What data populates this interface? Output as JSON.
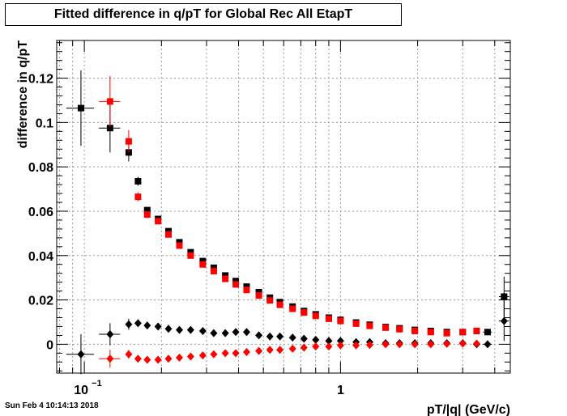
{
  "title": "Fitted difference in q/pT for Global Rec All EtapT",
  "timestamp": "Sun Feb  4 10:14:13 2018",
  "colors": {
    "black": "#000000",
    "red": "#ff0000",
    "grid": "#9a9a9a",
    "frame": "#000000"
  },
  "chart_data": {
    "type": "scatter",
    "title": "Fitted difference in q/pT for Global Rec All EtapT",
    "xlabel": "pT/|q| (GeV/c)",
    "ylabel": "difference in q/pT",
    "xscale": "log",
    "xlim": [
      0.078,
      4.6
    ],
    "ylim": [
      -0.013,
      0.137
    ],
    "grid": true,
    "x_major_ticks": [
      {
        "value": 0.1,
        "base": "10",
        "exp": "−1"
      },
      {
        "value": 1,
        "base": "1",
        "exp": ""
      }
    ],
    "y_ticks": [
      {
        "value": 0,
        "label": "0"
      },
      {
        "value": 0.02,
        "label": "0.02"
      },
      {
        "value": 0.04,
        "label": "0.04"
      },
      {
        "value": 0.06,
        "label": "0.06"
      },
      {
        "value": 0.08,
        "label": "0.08"
      },
      {
        "value": 0.1,
        "label": "0.1"
      },
      {
        "value": 0.12,
        "label": "0.12"
      }
    ],
    "series": [
      {
        "color": "#000000",
        "marker": "square",
        "points": [
          {
            "x": 0.097,
            "y": 0.1065,
            "xerr": 0.012,
            "yerr": 0.017
          },
          {
            "x": 0.126,
            "y": 0.0975,
            "xerr": 0.012,
            "yerr": 0.011
          },
          {
            "x": 0.149,
            "y": 0.0865,
            "xerr": 0.004,
            "yerr": 0.004
          },
          {
            "x": 0.162,
            "y": 0.0735,
            "xerr": 0.004,
            "yerr": 0.002
          },
          {
            "x": 0.176,
            "y": 0.0605,
            "xerr": 0.005,
            "yerr": 0.0015
          },
          {
            "x": 0.194,
            "y": 0.0565,
            "xerr": 0.005,
            "yerr": 0.0012
          },
          {
            "x": 0.213,
            "y": 0.051
          },
          {
            "x": 0.235,
            "y": 0.046
          },
          {
            "x": 0.26,
            "y": 0.0415
          },
          {
            "x": 0.29,
            "y": 0.0375
          },
          {
            "x": 0.32,
            "y": 0.0345
          },
          {
            "x": 0.355,
            "y": 0.031
          },
          {
            "x": 0.39,
            "y": 0.0285
          },
          {
            "x": 0.43,
            "y": 0.026
          },
          {
            "x": 0.48,
            "y": 0.0235
          },
          {
            "x": 0.53,
            "y": 0.021
          },
          {
            "x": 0.58,
            "y": 0.019
          },
          {
            "x": 0.65,
            "y": 0.017
          },
          {
            "x": 0.72,
            "y": 0.015
          },
          {
            "x": 0.8,
            "y": 0.0135
          },
          {
            "x": 0.9,
            "y": 0.012
          },
          {
            "x": 1.0,
            "y": 0.011
          },
          {
            "x": 1.15,
            "y": 0.0098
          },
          {
            "x": 1.3,
            "y": 0.0088
          },
          {
            "x": 1.5,
            "y": 0.0078
          },
          {
            "x": 1.7,
            "y": 0.0072
          },
          {
            "x": 1.95,
            "y": 0.0065
          },
          {
            "x": 2.25,
            "y": 0.006
          },
          {
            "x": 2.6,
            "y": 0.0055
          },
          {
            "x": 3.0,
            "y": 0.0055
          },
          {
            "x": 3.4,
            "y": 0.006
          },
          {
            "x": 3.75,
            "y": 0.0055,
            "xerr": 0.15
          },
          {
            "x": 4.35,
            "y": 0.0215,
            "xerr": 0.2,
            "yerr": 0.009
          }
        ]
      },
      {
        "color": "#ff0000",
        "marker": "square",
        "points": [
          {
            "x": 0.126,
            "y": 0.1095,
            "xerr": 0.012,
            "yerr": 0.0115
          },
          {
            "x": 0.149,
            "y": 0.0915,
            "xerr": 0.004,
            "yerr": 0.005
          },
          {
            "x": 0.162,
            "y": 0.0665,
            "xerr": 0.004,
            "yerr": 0.002
          },
          {
            "x": 0.176,
            "y": 0.0585,
            "xerr": 0.005,
            "yerr": 0.0015
          },
          {
            "x": 0.194,
            "y": 0.0555,
            "xerr": 0.005,
            "yerr": 0.0012
          },
          {
            "x": 0.213,
            "y": 0.0495
          },
          {
            "x": 0.235,
            "y": 0.0445
          },
          {
            "x": 0.26,
            "y": 0.04
          },
          {
            "x": 0.29,
            "y": 0.036
          },
          {
            "x": 0.32,
            "y": 0.033
          },
          {
            "x": 0.355,
            "y": 0.0295
          },
          {
            "x": 0.39,
            "y": 0.027
          },
          {
            "x": 0.43,
            "y": 0.0245
          },
          {
            "x": 0.48,
            "y": 0.022
          },
          {
            "x": 0.53,
            "y": 0.0198
          },
          {
            "x": 0.58,
            "y": 0.0178
          },
          {
            "x": 0.65,
            "y": 0.016
          },
          {
            "x": 0.72,
            "y": 0.0143
          },
          {
            "x": 0.8,
            "y": 0.0128
          },
          {
            "x": 0.9,
            "y": 0.0115
          },
          {
            "x": 1.0,
            "y": 0.0105
          },
          {
            "x": 1.15,
            "y": 0.0093
          },
          {
            "x": 1.3,
            "y": 0.0083
          },
          {
            "x": 1.5,
            "y": 0.0075
          },
          {
            "x": 1.7,
            "y": 0.0068
          },
          {
            "x": 1.95,
            "y": 0.006
          },
          {
            "x": 2.25,
            "y": 0.0055
          },
          {
            "x": 2.6,
            "y": 0.005
          },
          {
            "x": 3.0,
            "y": 0.0055
          },
          {
            "x": 3.4,
            "y": 0.006
          }
        ]
      },
      {
        "color": "#000000",
        "marker": "diamond",
        "points": [
          {
            "x": 0.097,
            "y": -0.0045,
            "xerr": 0.012,
            "yerr": 0.009
          },
          {
            "x": 0.126,
            "y": 0.0045,
            "xerr": 0.012,
            "yerr": 0.005
          },
          {
            "x": 0.149,
            "y": 0.009,
            "xerr": 0.004,
            "yerr": 0.0025
          },
          {
            "x": 0.162,
            "y": 0.0095,
            "xerr": 0.004
          },
          {
            "x": 0.176,
            "y": 0.0085
          },
          {
            "x": 0.194,
            "y": 0.008
          },
          {
            "x": 0.213,
            "y": 0.007
          },
          {
            "x": 0.235,
            "y": 0.0065
          },
          {
            "x": 0.26,
            "y": 0.0065
          },
          {
            "x": 0.29,
            "y": 0.006
          },
          {
            "x": 0.32,
            "y": 0.005
          },
          {
            "x": 0.355,
            "y": 0.005
          },
          {
            "x": 0.39,
            "y": 0.0055
          },
          {
            "x": 0.43,
            "y": 0.0055
          },
          {
            "x": 0.48,
            "y": 0.004
          },
          {
            "x": 0.53,
            "y": 0.0035
          },
          {
            "x": 0.58,
            "y": 0.0035
          },
          {
            "x": 0.65,
            "y": 0.003
          },
          {
            "x": 0.72,
            "y": 0.0025
          },
          {
            "x": 0.8,
            "y": 0.002
          },
          {
            "x": 0.9,
            "y": 0.0015
          },
          {
            "x": 1.0,
            "y": 0.0015
          },
          {
            "x": 1.15,
            "y": 0.001
          },
          {
            "x": 1.3,
            "y": 0.001
          },
          {
            "x": 1.5,
            "y": 0.0005
          },
          {
            "x": 1.7,
            "y": 0.0005
          },
          {
            "x": 1.95,
            "y": 0.0005
          },
          {
            "x": 2.25,
            "y": 0.0005
          },
          {
            "x": 2.6,
            "y": 0.0005
          },
          {
            "x": 3.0,
            "y": 0.0005
          },
          {
            "x": 3.4,
            "y": 0.0
          },
          {
            "x": 3.75,
            "y": 0.0,
            "xerr": 0.15
          },
          {
            "x": 4.35,
            "y": 0.0105,
            "xerr": 0.2,
            "yerr": 0.009
          }
        ]
      },
      {
        "color": "#ff0000",
        "marker": "diamond",
        "points": [
          {
            "x": 0.126,
            "y": -0.0065,
            "xerr": 0.012,
            "yerr": 0.004
          },
          {
            "x": 0.149,
            "y": -0.0045,
            "xerr": 0.004,
            "yerr": 0.002
          },
          {
            "x": 0.162,
            "y": -0.0065
          },
          {
            "x": 0.176,
            "y": -0.007
          },
          {
            "x": 0.194,
            "y": -0.007
          },
          {
            "x": 0.213,
            "y": -0.0065
          },
          {
            "x": 0.235,
            "y": -0.006
          },
          {
            "x": 0.26,
            "y": -0.0055
          },
          {
            "x": 0.29,
            "y": -0.005
          },
          {
            "x": 0.32,
            "y": -0.0045
          },
          {
            "x": 0.355,
            "y": -0.004
          },
          {
            "x": 0.39,
            "y": -0.004
          },
          {
            "x": 0.43,
            "y": -0.0035
          },
          {
            "x": 0.48,
            "y": -0.003
          },
          {
            "x": 0.53,
            "y": -0.0025
          },
          {
            "x": 0.58,
            "y": -0.0025
          },
          {
            "x": 0.65,
            "y": -0.002
          },
          {
            "x": 0.72,
            "y": -0.0015
          },
          {
            "x": 0.8,
            "y": -0.001
          },
          {
            "x": 0.9,
            "y": -0.001
          },
          {
            "x": 1.0,
            "y": -0.0005
          },
          {
            "x": 1.15,
            "y": -0.0005
          },
          {
            "x": 1.3,
            "y": -0.0003
          },
          {
            "x": 1.5,
            "y": 0.0
          },
          {
            "x": 1.7,
            "y": 0.0
          },
          {
            "x": 1.95,
            "y": 0.0
          },
          {
            "x": 2.25,
            "y": 0.0
          },
          {
            "x": 2.6,
            "y": 0.0002
          },
          {
            "x": 3.0,
            "y": 0.0003
          },
          {
            "x": 3.4,
            "y": 0.0003
          }
        ]
      }
    ]
  }
}
